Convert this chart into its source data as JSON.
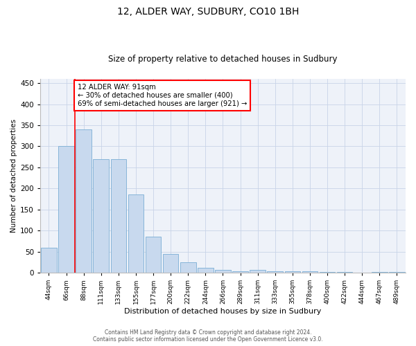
{
  "title": "12, ALDER WAY, SUDBURY, CO10 1BH",
  "subtitle": "Size of property relative to detached houses in Sudbury",
  "xlabel": "Distribution of detached houses by size in Sudbury",
  "ylabel": "Number of detached properties",
  "categories": [
    "44sqm",
    "66sqm",
    "88sqm",
    "111sqm",
    "133sqm",
    "155sqm",
    "177sqm",
    "200sqm",
    "222sqm",
    "244sqm",
    "266sqm",
    "289sqm",
    "311sqm",
    "333sqm",
    "355sqm",
    "378sqm",
    "400sqm",
    "422sqm",
    "444sqm",
    "467sqm",
    "489sqm"
  ],
  "values": [
    60,
    300,
    340,
    270,
    270,
    185,
    85,
    45,
    25,
    12,
    7,
    4,
    6,
    4,
    4,
    3,
    2,
    1,
    0,
    2,
    1
  ],
  "bar_color": "#c8d9ee",
  "bar_edge_color": "#7aaed4",
  "grid_color": "#c8d4e8",
  "background_color": "#eef2f9",
  "annotation_text_line1": "12 ALDER WAY: 91sqm",
  "annotation_text_line2": "← 30% of detached houses are smaller (400)",
  "annotation_text_line3": "69% of semi-detached houses are larger (921) →",
  "ylim": [
    0,
    460
  ],
  "yticks": [
    0,
    50,
    100,
    150,
    200,
    250,
    300,
    350,
    400,
    450
  ],
  "footer_line1": "Contains HM Land Registry data © Crown copyright and database right 2024.",
  "footer_line2": "Contains public sector information licensed under the Open Government Licence v3.0."
}
